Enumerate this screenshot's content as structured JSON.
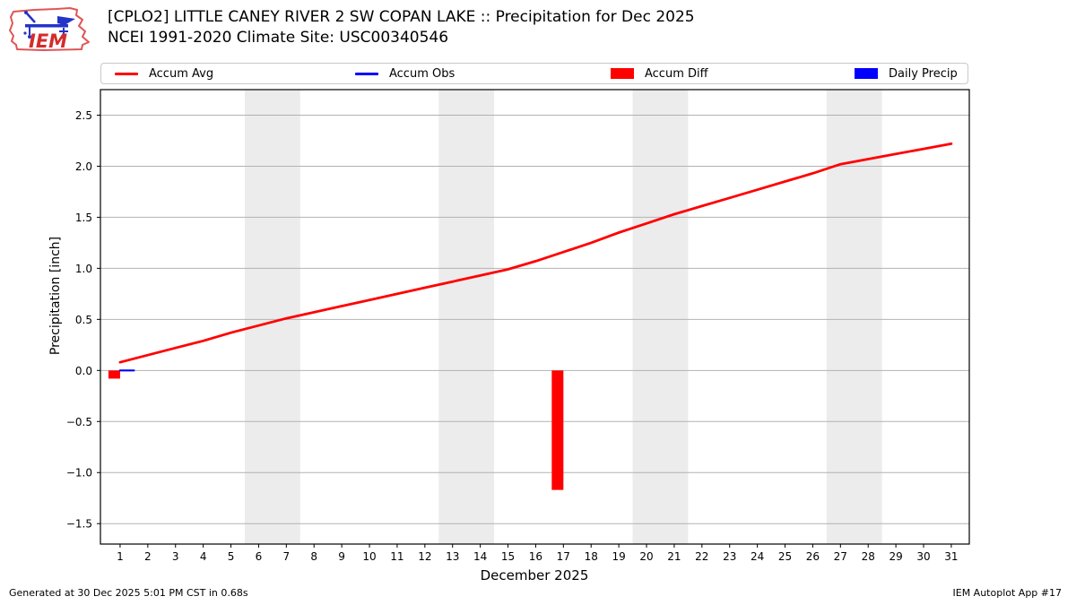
{
  "header": {
    "title": "[CPLO2] LITTLE CANEY RIVER 2 SW COPAN LAKE :: Precipitation for Dec 2025",
    "subtitle": "NCEI 1991-2020 Climate Site: USC00340546",
    "logo_text": "IEM"
  },
  "legend": {
    "items": [
      {
        "label": "Accum Avg",
        "type": "line",
        "color": "#ff0000"
      },
      {
        "label": "Accum Obs",
        "type": "line",
        "color": "#0000ff"
      },
      {
        "label": "Accum Diff",
        "type": "patch",
        "color": "#ff0000"
      },
      {
        "label": "Daily Precip",
        "type": "patch",
        "color": "#0000ff"
      }
    ]
  },
  "chart_data": {
    "type": "line",
    "xlabel": "December 2025",
    "ylabel": "Precipitation [inch]",
    "xlim": [
      0.29,
      31.65
    ],
    "ylim": [
      -1.7,
      2.75
    ],
    "grid": true,
    "x_ticks": [
      1,
      2,
      3,
      4,
      5,
      6,
      7,
      8,
      9,
      10,
      11,
      12,
      13,
      14,
      15,
      16,
      17,
      18,
      19,
      20,
      21,
      22,
      23,
      24,
      25,
      26,
      27,
      28,
      29,
      30,
      31
    ],
    "y_ticks": [
      -1.5,
      -1.0,
      -0.5,
      0.0,
      0.5,
      1.0,
      1.5,
      2.0,
      2.5
    ],
    "y_tick_labels": [
      "−1.5",
      "−1.0",
      "−0.5",
      "0.0",
      "0.5",
      "1.0",
      "1.5",
      "2.0",
      "2.5"
    ],
    "weekend_bands": [
      [
        5.5,
        7.5
      ],
      [
        12.5,
        14.5
      ],
      [
        19.5,
        21.5
      ],
      [
        26.5,
        28.5
      ]
    ],
    "series": [
      {
        "name": "Accum Avg",
        "color": "#ff0000",
        "x": [
          1,
          2,
          3,
          4,
          5,
          6,
          7,
          8,
          9,
          10,
          11,
          12,
          13,
          14,
          15,
          16,
          17,
          18,
          19,
          20,
          21,
          22,
          23,
          24,
          25,
          26,
          27,
          28,
          29,
          30,
          31
        ],
        "y": [
          0.08,
          0.15,
          0.22,
          0.29,
          0.37,
          0.44,
          0.51,
          0.57,
          0.63,
          0.69,
          0.75,
          0.81,
          0.87,
          0.93,
          0.99,
          1.07,
          1.16,
          1.25,
          1.35,
          1.44,
          1.53,
          1.61,
          1.69,
          1.77,
          1.85,
          1.93,
          2.02,
          2.07,
          2.12,
          2.17,
          2.22
        ]
      },
      {
        "name": "Accum Obs",
        "color": "#0000ff",
        "x": [
          1,
          1.5
        ],
        "y": [
          0.0,
          0.0
        ]
      }
    ],
    "bars": [
      {
        "name": "Accum Diff",
        "color": "#ff0000",
        "points": [
          {
            "x": 1,
            "y": -0.08
          },
          {
            "x": 17,
            "y": -1.17
          }
        ]
      },
      {
        "name": "Daily Precip",
        "color": "#0000ff",
        "points": []
      }
    ]
  },
  "footer": {
    "left": "Generated at 30 Dec 2025 5:01 PM CST in 0.68s",
    "right": "IEM Autoplot App #17"
  }
}
